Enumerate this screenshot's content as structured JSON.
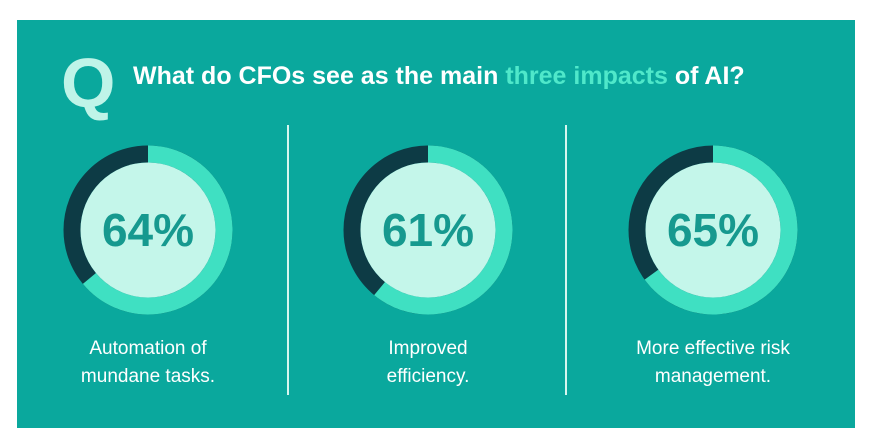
{
  "header": {
    "icon": "Q",
    "title": [
      "What do CFOs see as the main ",
      "three impacts",
      " of AI?"
    ]
  },
  "chart_data": [
    {
      "type": "donut",
      "values": [
        64
      ],
      "value_labels": [
        "64%"
      ],
      "categories": [
        "Automation of mundane tasks."
      ],
      "color": "#3fe0c2",
      "track_color": "#0d3b45"
    },
    {
      "type": "donut",
      "values": [
        61
      ],
      "value_labels": [
        "61%"
      ],
      "categories": [
        "Improved efficiency."
      ],
      "color": "#3fe0c2",
      "track_color": "#0d3b45"
    },
    {
      "type": "donut",
      "values": [
        65
      ],
      "value_labels": [
        "65%"
      ],
      "categories": [
        "More effective risk management."
      ],
      "color": "#3fe0c2",
      "track_color": "#0d3b45"
    }
  ]
}
